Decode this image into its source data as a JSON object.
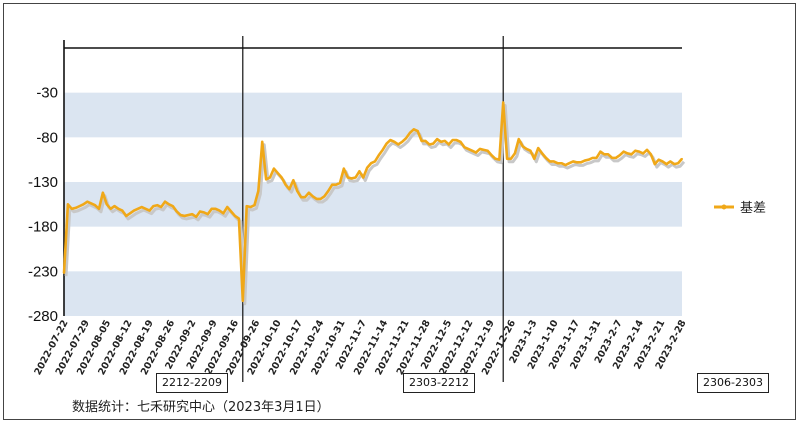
{
  "chart_data": {
    "type": "line",
    "series": [
      {
        "name": "基差",
        "color": "#f0a818",
        "values": [
          -232,
          -155,
          -160,
          -159,
          -157,
          -155,
          -152,
          -154,
          -156,
          -160,
          -142,
          -155,
          -160,
          -157,
          -160,
          -162,
          -168,
          -165,
          -162,
          -160,
          -158,
          -160,
          -162,
          -157,
          -156,
          -158,
          -152,
          -155,
          -157,
          -163,
          -167,
          -168,
          -167,
          -166,
          -169,
          -163,
          -164,
          -166,
          -160,
          -160,
          -162,
          -165,
          -158,
          -163,
          -168,
          -171,
          -263,
          -157,
          -158,
          -156,
          -140,
          -85,
          -127,
          -125,
          -115,
          -120,
          -125,
          -133,
          -138,
          -128,
          -140,
          -147,
          -147,
          -142,
          -146,
          -149,
          -149,
          -146,
          -140,
          -133,
          -133,
          -131,
          -115,
          -125,
          -126,
          -125,
          -118,
          -125,
          -114,
          -109,
          -107,
          -100,
          -94,
          -87,
          -83,
          -85,
          -88,
          -85,
          -81,
          -75,
          -71,
          -73,
          -84,
          -84,
          -88,
          -87,
          -82,
          -85,
          -84,
          -88,
          -83,
          -83,
          -85,
          -91,
          -93,
          -95,
          -97,
          -93,
          -94,
          -95,
          -100,
          -104,
          -105,
          -41,
          -104,
          -104,
          -98,
          -82,
          -90,
          -93,
          -95,
          -104,
          -92,
          -98,
          -103,
          -107,
          -107,
          -109,
          -109,
          -111,
          -109,
          -107,
          -108,
          -108,
          -106,
          -105,
          -103,
          -103,
          -96,
          -99,
          -99,
          -103,
          -103,
          -100,
          -96,
          -98,
          -99,
          -95,
          -96,
          -98,
          -94,
          -99,
          -110,
          -105,
          -107,
          -110,
          -107,
          -110,
          -109,
          -104
        ]
      }
    ],
    "x_tick_labels": [
      "2022-07-22",
      "2022-07-29",
      "2022-08-05",
      "2022-08-12",
      "2022-08-19",
      "2022-08-26",
      "2022-09-2",
      "2022-09-9",
      "2022-09-16",
      "2022-09-26",
      "2022-10-10",
      "2022-10-17",
      "2022-10-24",
      "2022-10-31",
      "2022-11-7",
      "2022-11-14",
      "2022-11-21",
      "2022-11-28",
      "2022-12-5",
      "2022-12-12",
      "2022-12-19",
      "2022-12-26",
      "2023-1-3",
      "2023-1-10",
      "2023-1-17",
      "2023-1-31",
      "2023-2-7",
      "2023-2-14",
      "2023-2-21",
      "2023-2-28"
    ],
    "y_tick_labels": [
      "-30",
      "-80",
      "-130",
      "-180",
      "-230",
      "-280"
    ],
    "ylim": [
      -280,
      20
    ],
    "yticks": [
      -30,
      -80,
      -130,
      -180,
      -230,
      -280
    ],
    "bands": [
      [
        -80,
        -30
      ],
      [
        -180,
        -130
      ],
      [
        -280,
        -230
      ]
    ],
    "band_color": "#dbe5f1",
    "legend_position": "right",
    "contract_switch_labels": [
      "2212-2209",
      "2303-2212",
      "2306-2303"
    ],
    "contract_switch_indices": [
      46,
      113
    ]
  },
  "source_note": "数据统计：七禾研究中心（2023年3月1日）"
}
